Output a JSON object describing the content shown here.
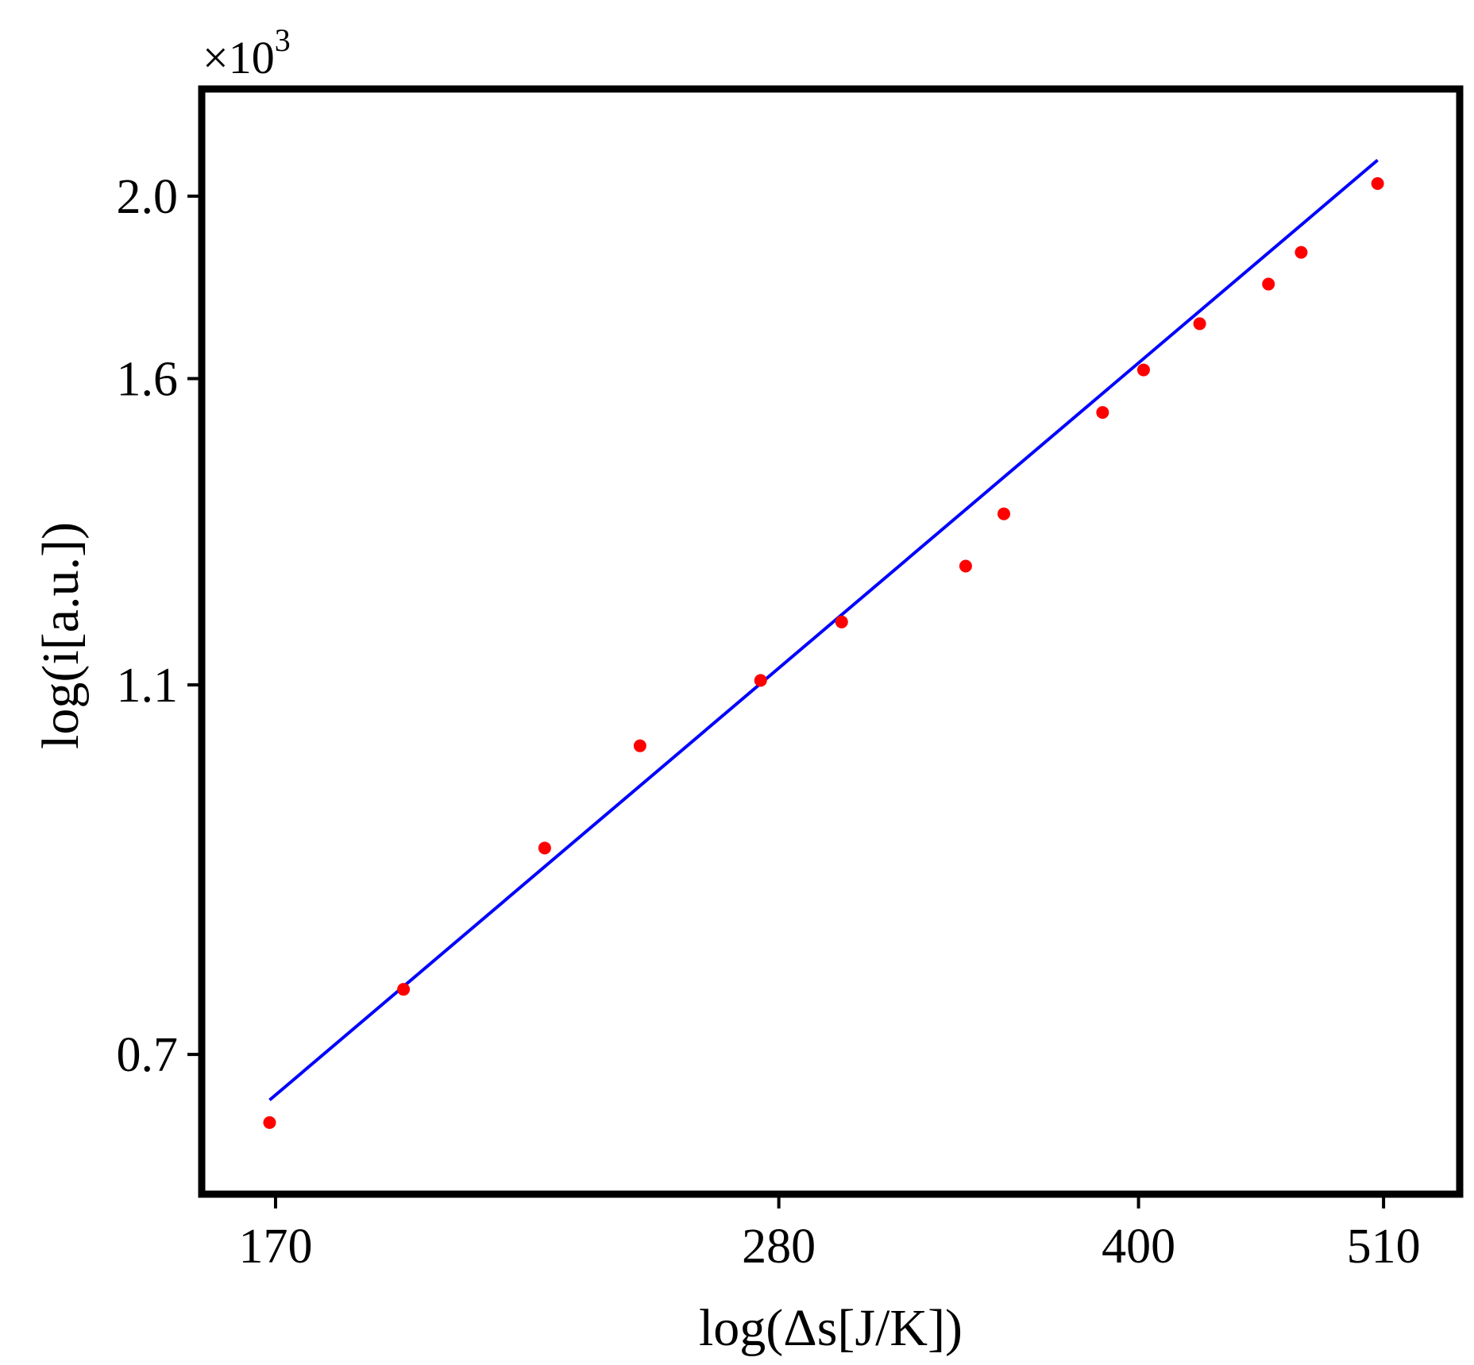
{
  "chart_data": {
    "type": "scatter",
    "xscale": "log",
    "yscale": "log",
    "xlabel": "log(Δs[J/K])",
    "ylabel": "log(i[a.u.])",
    "y_multiplier": {
      "base": "×10",
      "exponent": "3"
    },
    "xlim": [
      158,
      550
    ],
    "ylim": [
      0.59,
      2.28
    ],
    "x_ticks": [
      {
        "value": 170,
        "label": "170"
      },
      {
        "value": 280,
        "label": "280"
      },
      {
        "value": 400,
        "label": "400"
      },
      {
        "value": 510,
        "label": "510"
      }
    ],
    "y_ticks": [
      {
        "value": 0.7,
        "label": "0.7"
      },
      {
        "value": 1.1,
        "label": "1.1"
      },
      {
        "value": 1.6,
        "label": "1.6"
      },
      {
        "value": 2.0,
        "label": "2.0"
      }
    ],
    "grid": false,
    "legend": "none",
    "series": [
      {
        "kind": "points",
        "color": "#ff0000",
        "x": [
          169,
          193,
          222,
          244,
          275,
          298,
          337,
          350,
          386,
          402,
          425,
          455,
          470,
          507
        ],
        "y": [
          0.644,
          0.758,
          0.901,
          1.021,
          1.106,
          1.188,
          1.272,
          1.356,
          1.535,
          1.617,
          1.711,
          1.796,
          1.867,
          2.031
        ]
      },
      {
        "kind": "fit-line",
        "color": "#0000ff",
        "x": [
          169,
          507
        ],
        "y": [
          0.662,
          2.09
        ]
      }
    ]
  }
}
